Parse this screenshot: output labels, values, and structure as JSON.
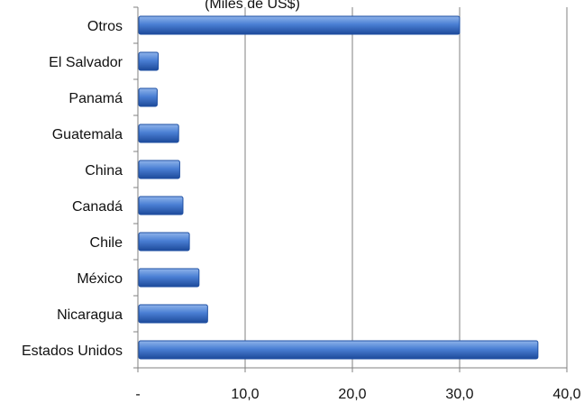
{
  "chart_data": {
    "type": "bar",
    "orientation": "horizontal",
    "title": "(Miles de US$)",
    "categories": [
      "Otros",
      "El Salvador",
      "Panamá",
      "Guatemala",
      "China",
      "Canadá",
      "Chile",
      "México",
      "Nicaragua",
      "Estados Unidos"
    ],
    "values": [
      30.0,
      1.9,
      1.8,
      3.8,
      3.9,
      4.2,
      4.8,
      5.7,
      6.5,
      37.3
    ],
    "xlim": [
      0,
      40
    ],
    "xticks": [
      0,
      10,
      20,
      30,
      40
    ],
    "xtick_labels": [
      "-",
      "10,0",
      "20,0",
      "30,0",
      "40,0"
    ],
    "grid": "vertical",
    "legend": "none",
    "colors": {
      "bar_top": "#8fb4ea",
      "bar_mid": "#4a7fd4",
      "bar_bottom": "#1d4a9a",
      "bar_edge": "#1e4fa3",
      "gridline": "#808080",
      "axis": "#808080"
    }
  }
}
